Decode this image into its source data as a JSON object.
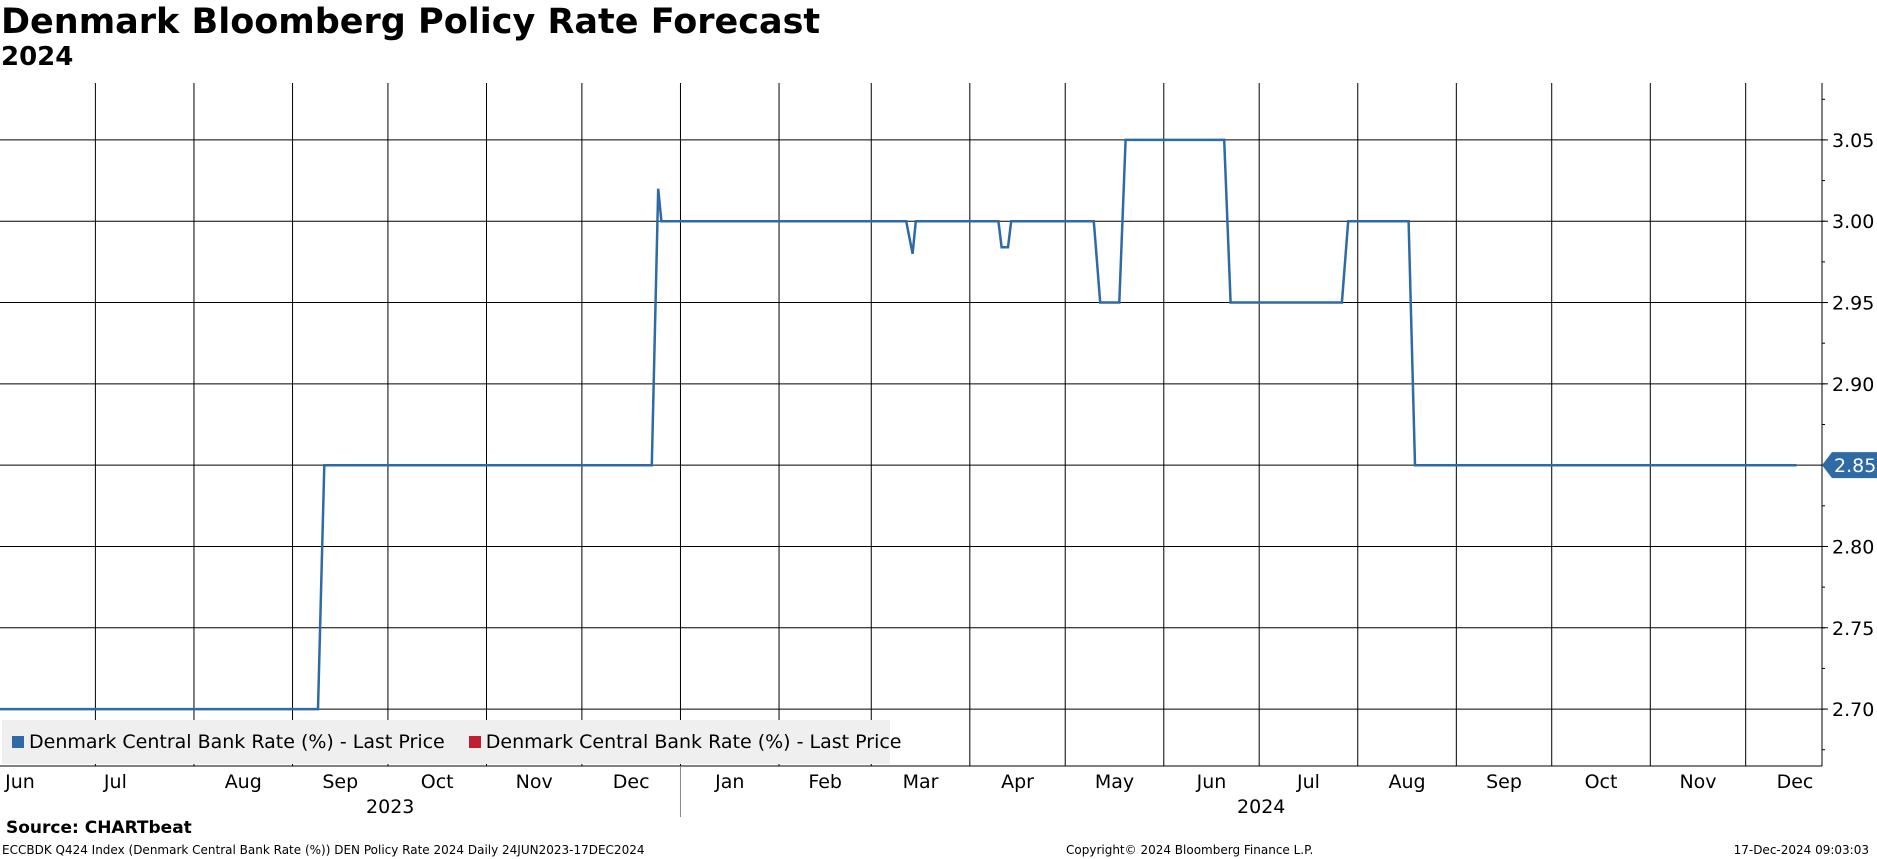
{
  "title": "Denmark Bloomberg Policy Rate Forecast",
  "subtitle": "2024",
  "chart_data": {
    "type": "line",
    "x_labels": [
      "Jun",
      "Jul",
      "Aug",
      "Sep",
      "Oct",
      "Nov",
      "Dec",
      "Jan",
      "Feb",
      "Mar",
      "Apr",
      "May",
      "Jun",
      "Jul",
      "Aug",
      "Sep",
      "Oct",
      "Nov",
      "Dec"
    ],
    "year_labels": [
      "2023",
      "2024"
    ],
    "y_ticks": [
      "3.05",
      "3.00",
      "2.95",
      "2.90",
      "2.85",
      "2.80",
      "2.75",
      "2.70"
    ],
    "ylim": [
      2.665,
      3.085
    ],
    "xlim": [
      "2023-06-01",
      "2024-12-25"
    ],
    "grid": true,
    "legend_placement": "bottom-left",
    "last_value_label": "2.85",
    "series": [
      {
        "name": "Denmark Central Bank Rate (%) - Last Price",
        "color": "#2e6aa6",
        "points": [
          [
            "2023-06-01",
            2.7
          ],
          [
            "2023-09-09",
            2.7
          ],
          [
            "2023-09-11",
            2.85
          ],
          [
            "2023-12-23",
            2.85
          ],
          [
            "2023-12-25",
            3.02
          ],
          [
            "2023-12-26",
            3.0
          ],
          [
            "2024-03-12",
            3.0
          ],
          [
            "2024-03-14",
            2.98
          ],
          [
            "2024-03-15",
            3.0
          ],
          [
            "2024-04-10",
            3.0
          ],
          [
            "2024-04-11",
            2.984
          ],
          [
            "2024-04-13",
            2.984
          ],
          [
            "2024-04-14",
            3.0
          ],
          [
            "2024-05-10",
            3.0
          ],
          [
            "2024-05-12",
            2.95
          ],
          [
            "2024-05-18",
            2.95
          ],
          [
            "2024-05-20",
            3.05
          ],
          [
            "2024-06-20",
            3.05
          ],
          [
            "2024-06-22",
            2.95
          ],
          [
            "2024-07-27",
            2.95
          ],
          [
            "2024-07-29",
            3.0
          ],
          [
            "2024-08-17",
            3.0
          ],
          [
            "2024-08-19",
            2.85
          ],
          [
            "2024-12-17",
            2.85
          ]
        ]
      },
      {
        "name": "Denmark Central Bank Rate (%) - Last Price",
        "color": "#c0202e",
        "points": []
      }
    ]
  },
  "source": "Source: CHARTbeat",
  "footer": {
    "left": "ECCBDK Q424 Index (Denmark Central Bank Rate (%)) DEN Policy Rate 2024  Daily 24JUN2023-17DEC2024",
    "center": "Copyright© 2024 Bloomberg Finance L.P.",
    "right": "17-Dec-2024 09:03:03"
  }
}
